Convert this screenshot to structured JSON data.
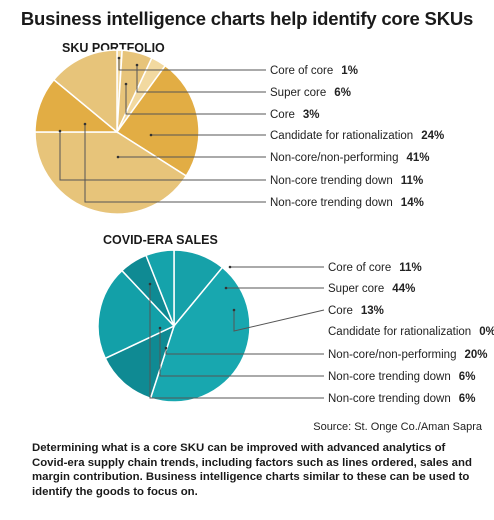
{
  "title": "Business intelligence charts help identify core SKUs",
  "source": "Source: St. Onge Co./Aman Sapra",
  "caption": "Determining what is a core SKU can be improved with advanced analytics of Covid-era supply chain trends, including factors such as lines ordered, sales and margin contribution. Business intelligence charts similar to these can be used to identify the goods to focus on.",
  "chart_data": [
    {
      "type": "pie",
      "title": "SKU PORTFOLIO",
      "categories": [
        "Core of core",
        "Super core",
        "Core",
        "Candidate for rationalization",
        "Non-core/non-performing",
        "Non-core trending down",
        "Non-core trending down"
      ],
      "values": [
        1,
        6,
        3,
        24,
        41,
        11,
        14
      ],
      "value_labels": [
        "1%",
        "6%",
        "3%",
        "24%",
        "41%",
        "11%",
        "14%"
      ],
      "colors": [
        "#f2d9a0",
        "#e7c47a",
        "#f2d9a0",
        "#e2ad44",
        "#e7c47a",
        "#e2ad44",
        "#e7c47a"
      ]
    },
    {
      "type": "pie",
      "title": "COVID-ERA SALES",
      "categories": [
        "Core of core",
        "Super core",
        "Core",
        "Candidate for rationalization",
        "Non-core/non-performing",
        "Non-core trending down",
        "Non-core trending down"
      ],
      "values": [
        11,
        44,
        13,
        0,
        20,
        6,
        6
      ],
      "value_labels": [
        "11%",
        "44%",
        "13%",
        "0%",
        "20%",
        "6%",
        "6%"
      ],
      "colors": [
        "#16a1a9",
        "#18a7af",
        "#0f8a93",
        "#18a7af",
        "#13a0a8",
        "#0f8a93",
        "#15a3ab"
      ]
    }
  ]
}
